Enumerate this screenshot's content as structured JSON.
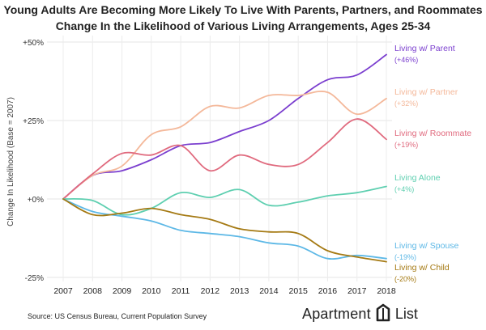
{
  "chart_data": {
    "type": "line",
    "title": "Young Adults Are Becoming More Likely To Live With Parents, Partners, and Roommates",
    "subtitle": "Change In the Likelihood of Various Living Arrangements, Ages 25-34",
    "xlabel": "",
    "ylabel": "Change In Likelihood (Base = 2007)",
    "ylim": [
      -25,
      50
    ],
    "yticks": [
      -25,
      0,
      25,
      50
    ],
    "ytick_labels": [
      "-25%",
      "+0%",
      "+25%",
      "+50%"
    ],
    "x": [
      2007,
      2008,
      2009,
      2010,
      2011,
      2012,
      2013,
      2014,
      2015,
      2016,
      2017,
      2018
    ],
    "xtick_labels": [
      "2007",
      "2008",
      "2009",
      "2010",
      "2011",
      "2012",
      "2013",
      "2014",
      "2015",
      "2016",
      "2017",
      "2018"
    ],
    "grid": true,
    "series": [
      {
        "name": "Living w/ Parent",
        "change": "(+46%)",
        "color": "#7b3fcf",
        "values": [
          0,
          7.5,
          9,
          12.5,
          17,
          18,
          21.5,
          25,
          32,
          38,
          39.5,
          46
        ]
      },
      {
        "name": "Living w/ Partner",
        "change": "(+32%)",
        "color": "#f4b89a",
        "values": [
          0,
          7.5,
          10.5,
          20.5,
          23,
          29.5,
          29,
          33,
          33,
          34,
          27,
          32
        ]
      },
      {
        "name": "Living w/ Roommate",
        "change": "(+19%)",
        "color": "#e06a7e",
        "values": [
          0,
          8,
          14.5,
          14,
          17,
          9,
          14,
          11,
          11,
          18,
          25.5,
          19
        ]
      },
      {
        "name": "Living Alone",
        "change": "(+4%)",
        "color": "#5ecfb0",
        "values": [
          0,
          -0.5,
          -5,
          -3,
          2,
          0.5,
          3,
          -2,
          -1,
          1,
          2,
          4
        ]
      },
      {
        "name": "Living w/ Spouse",
        "change": "(-19%)",
        "color": "#5db8e6",
        "values": [
          0,
          -4,
          -5.5,
          -7,
          -10,
          -11,
          -12,
          -14,
          -15,
          -19,
          -18,
          -19
        ]
      },
      {
        "name": "Living w/ Child",
        "change": "(-20%)",
        "color": "#a57a14",
        "values": [
          0,
          -5,
          -4.5,
          -3,
          -5,
          -6.5,
          -9.5,
          -10.5,
          -11,
          -16.5,
          -18.5,
          -20
        ]
      }
    ]
  },
  "source": "Source: US Census Bureau, Current Population Survey",
  "logo": {
    "word1": "Apartment",
    "word2": "List",
    "icon": "apartment-list-logo-icon"
  }
}
